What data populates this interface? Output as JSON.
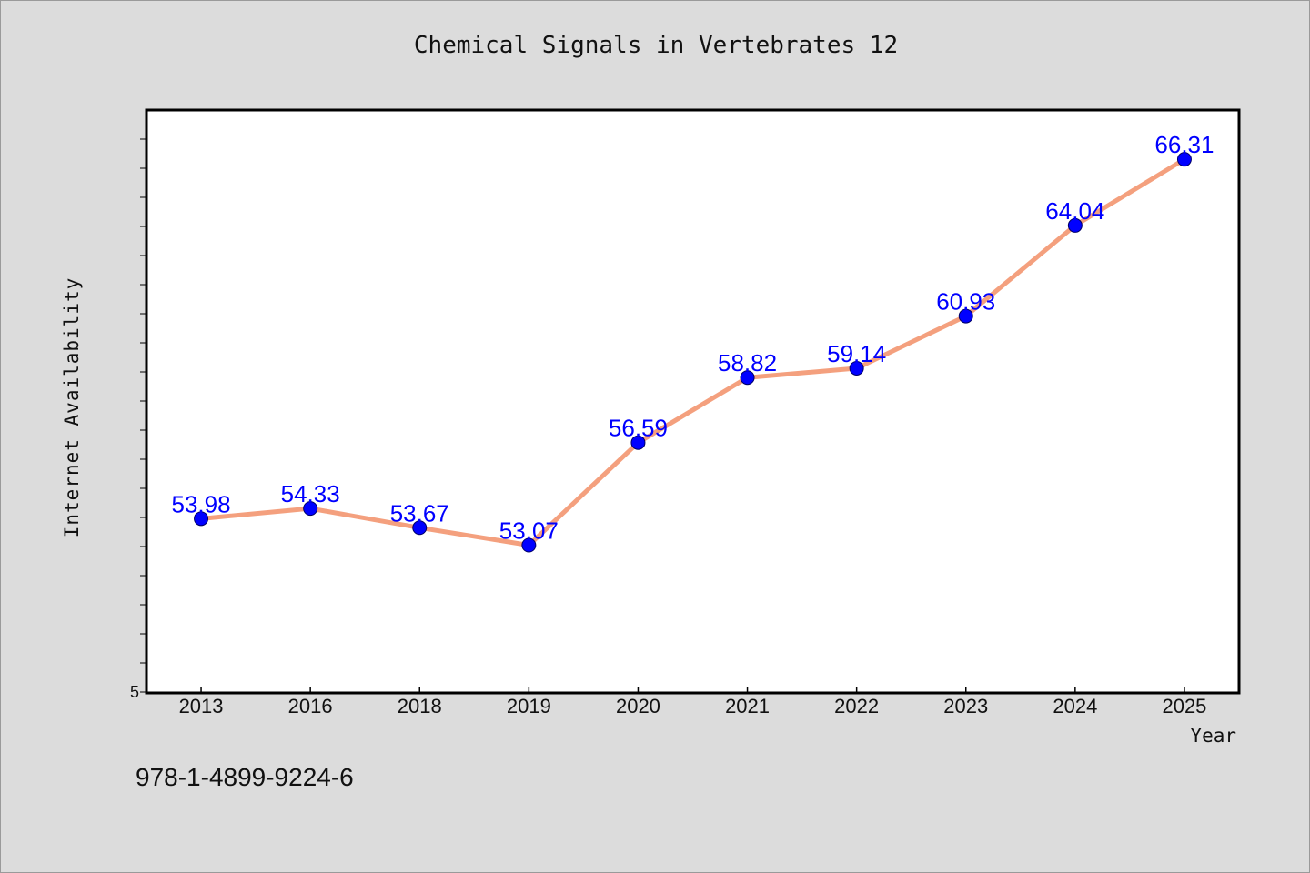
{
  "chart_data": {
    "type": "line",
    "title": "Chemical Signals in Vertebrates 12",
    "xlabel": "Year",
    "ylabel": "Internet Availability",
    "categories": [
      "2013",
      "2016",
      "2018",
      "2019",
      "2020",
      "2021",
      "2022",
      "2023",
      "2024",
      "2025"
    ],
    "series": [
      {
        "values": [
          53.98,
          54.33,
          53.67,
          53.07,
          56.59,
          58.82,
          59.14,
          60.93,
          64.04,
          66.31
        ],
        "labels": [
          "53.98",
          "54.33",
          "53.67",
          "53.07",
          "56.59",
          "58.82",
          "59.14",
          "60.93",
          "64.04",
          "66.31"
        ],
        "line_color": "#f4a07e",
        "marker_color": "#0000ff"
      }
    ],
    "y_tick_labels": [
      "5"
    ],
    "ylim": [
      48,
      68
    ],
    "grid": false
  },
  "footer": {
    "isbn": "978-1-4899-9224-6"
  }
}
